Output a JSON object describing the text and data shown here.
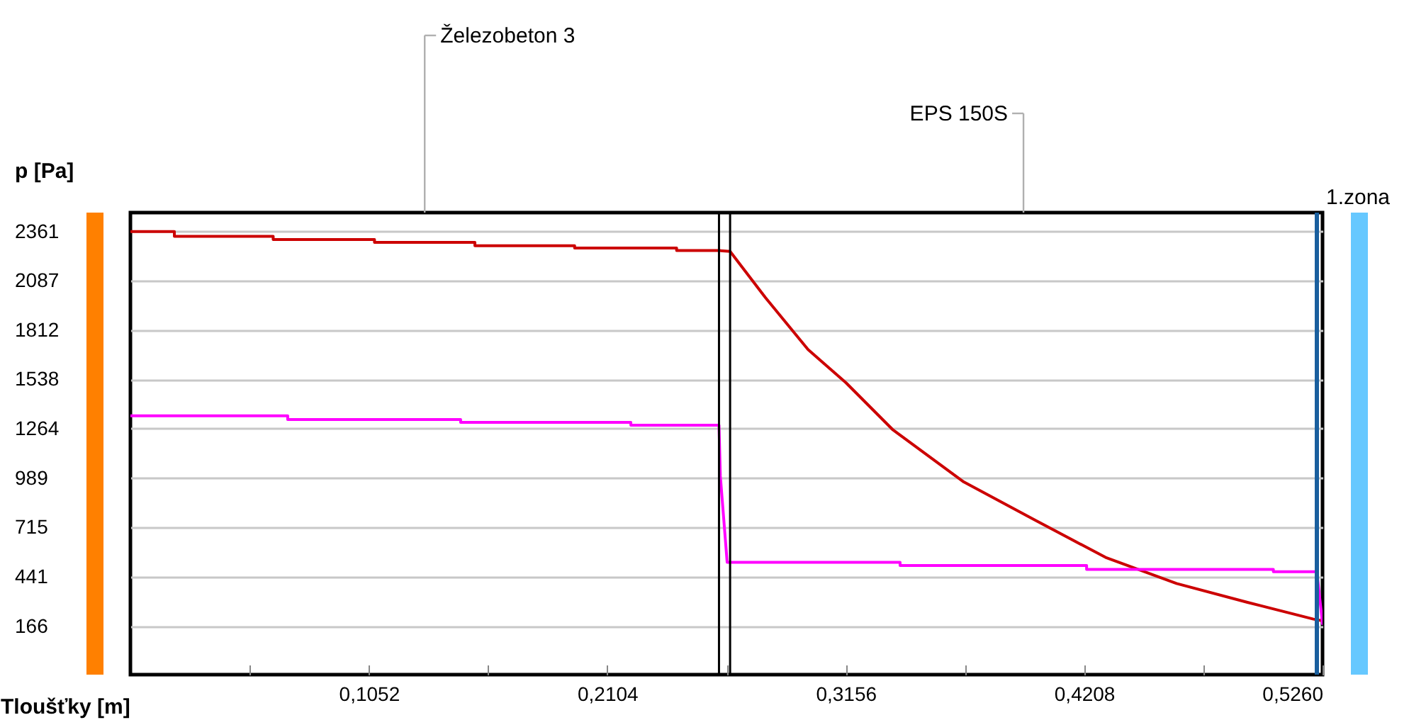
{
  "chart_data": {
    "type": "line",
    "xlabel": "Tloušťky [m]",
    "ylabel": "p [Pa]",
    "annotations": [
      "Železobeton 3",
      "EPS 150S",
      "1.zona"
    ],
    "series": [
      {
        "color": "#cc0000",
        "x": [
          0,
          0.0194,
          0.0194,
          0.063,
          0.063,
          0.1077,
          0.1077,
          0.152,
          0.152,
          0.196,
          0.196,
          0.241,
          0.241,
          0.2597,
          0.2646,
          0.2802,
          0.299,
          0.3157,
          0.3365,
          0.3677,
          0.3989,
          0.4303,
          0.4616,
          0.4929,
          0.522,
          0.526
        ],
        "values": [
          2361,
          2361,
          2334,
          2334,
          2316,
          2316,
          2300,
          2300,
          2282,
          2282,
          2269,
          2269,
          2255,
          2255,
          2250,
          1993,
          1704,
          1520,
          1257,
          968,
          757,
          548,
          403,
          298,
          205,
          195
        ]
      },
      {
        "color": "#ff00ff",
        "x": [
          0,
          0.0694,
          0.0694,
          0.1457,
          0.1457,
          0.2208,
          0.2208,
          0.2597,
          0.2603,
          0.2633,
          0.3396,
          0.3396,
          0.4219,
          0.4219,
          0.5043,
          0.5043,
          0.5235,
          0.526
        ],
        "values": [
          1336,
          1336,
          1315,
          1315,
          1299,
          1299,
          1283,
          1283,
          1000,
          521,
          521,
          503,
          503,
          481,
          481,
          469,
          469,
          179
        ]
      }
    ],
    "xlim": [
      0,
      0.526
    ],
    "xticks": [
      {
        "value": 0.0526,
        "label": null
      },
      {
        "value": 0.1052,
        "label": "0,1052"
      },
      {
        "value": 0.1578,
        "label": null
      },
      {
        "value": 0.2104,
        "label": "0,2104"
      },
      {
        "value": 0.263,
        "label": null
      },
      {
        "value": 0.3156,
        "label": "0,3156"
      },
      {
        "value": 0.3682,
        "label": null
      },
      {
        "value": 0.4208,
        "label": "0,4208"
      },
      {
        "value": 0.4734,
        "label": null
      },
      {
        "value": 0.526,
        "label": "0,5260"
      }
    ],
    "ylim": [
      -104,
      2466
    ],
    "yticks": [
      166,
      441,
      715,
      989,
      1264,
      1538,
      1812,
      2087,
      2361
    ],
    "ref_lines": [
      {
        "axis": "x",
        "value": 0.2597,
        "color": "#000000"
      },
      {
        "axis": "x",
        "value": 0.2646,
        "color": "#000000"
      },
      {
        "axis": "x",
        "value": 0.5235,
        "color": "#1a5f9e"
      }
    ],
    "grid": "y",
    "legend": false,
    "marker": "none",
    "line_style": "solid"
  }
}
